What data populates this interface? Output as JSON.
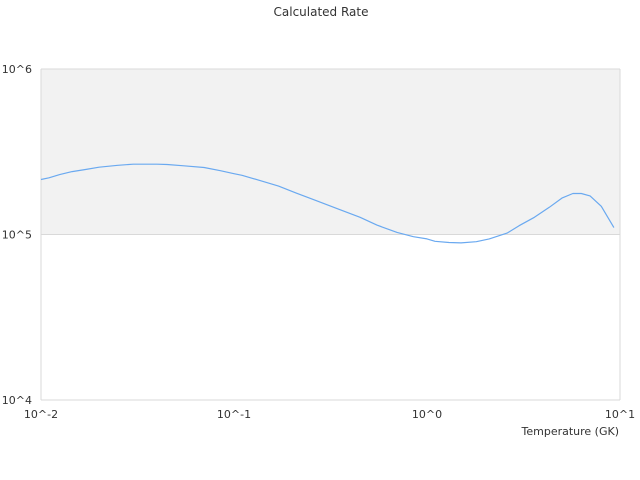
{
  "chart_data": {
    "type": "line",
    "title": "Calculated Rate",
    "xlabel": "Temperature (GK)",
    "ylabel": "",
    "x_scale": "log",
    "y_scale": "log",
    "xlim": [
      0.01,
      10
    ],
    "ylim": [
      10000,
      1000000
    ],
    "grid": true,
    "legend": "none",
    "x_ticks": [
      "10^-2",
      "10^-1",
      "10^0",
      "10^1"
    ],
    "y_ticks": [
      "10^4",
      "10^5",
      "10^6"
    ],
    "colors": {
      "line": "#6aa9f0",
      "band": "#f2f2f2",
      "grid": "#d9d9d9"
    },
    "series": [
      {
        "x": [
          0.01,
          0.011,
          0.0125,
          0.0145,
          0.017,
          0.02,
          0.025,
          0.03,
          0.04,
          0.045,
          0.055,
          0.07,
          0.085,
          0.1,
          0.11,
          0.14,
          0.17,
          0.21,
          0.26,
          0.35,
          0.45,
          0.55,
          0.7,
          0.85,
          1.0,
          1.1,
          1.3,
          1.5,
          1.8,
          2.1,
          2.6,
          3.0,
          3.6,
          4.3,
          5.0,
          5.7,
          6.3,
          7.0,
          8.0,
          9.3
        ],
        "values": [
          215000,
          220000,
          230000,
          240000,
          247000,
          255000,
          262000,
          266000,
          266000,
          265000,
          260000,
          254000,
          243000,
          233000,
          228000,
          210000,
          196000,
          178000,
          162000,
          142000,
          127000,
          114000,
          103000,
          97000,
          94000,
          91000,
          89500,
          89000,
          90500,
          94000,
          102000,
          113000,
          127000,
          146000,
          166000,
          177000,
          177000,
          171000,
          148000,
          110000
        ]
      }
    ]
  }
}
